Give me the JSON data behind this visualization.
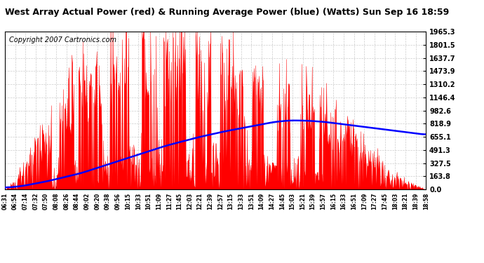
{
  "title": "West Array Actual Power (red) & Running Average Power (blue) (Watts) Sun Sep 16 18:59",
  "copyright": "Copyright 2007 Cartronics.com",
  "ymax": 1965.3,
  "yticks": [
    0.0,
    163.8,
    327.5,
    491.3,
    655.1,
    818.9,
    982.6,
    1146.4,
    1310.2,
    1473.9,
    1637.7,
    1801.5,
    1965.3
  ],
  "ytick_labels": [
    "0.0",
    "163.8",
    "327.5",
    "491.3",
    "655.1",
    "818.9",
    "982.6",
    "1146.4",
    "1310.2",
    "1473.9",
    "1637.7",
    "1801.5",
    "1965.3"
  ],
  "background_color": "#ffffff",
  "plot_bg_color": "#ffffff",
  "grid_color": "#cccccc",
  "bar_color": "#ff0000",
  "line_color": "#0000ff",
  "title_color": "#000000",
  "title_fontsize": 9,
  "copyright_fontsize": 7,
  "x_labels": [
    "06:31",
    "06:54",
    "07:14",
    "07:32",
    "07:50",
    "08:08",
    "08:26",
    "08:44",
    "09:02",
    "09:20",
    "09:38",
    "09:56",
    "10:15",
    "10:33",
    "10:51",
    "11:09",
    "11:27",
    "11:45",
    "12:03",
    "12:21",
    "12:39",
    "12:57",
    "13:15",
    "13:33",
    "13:51",
    "14:09",
    "14:27",
    "14:45",
    "15:03",
    "15:21",
    "15:39",
    "15:57",
    "16:15",
    "16:33",
    "16:51",
    "17:09",
    "17:27",
    "17:45",
    "18:03",
    "18:21",
    "18:39",
    "18:58"
  ],
  "avg_points_t": [
    0.0,
    0.04,
    0.1,
    0.18,
    0.28,
    0.38,
    0.46,
    0.52,
    0.56,
    0.6,
    0.64,
    0.68,
    0.72,
    0.76,
    0.82,
    0.88,
    0.94,
    1.0
  ],
  "avg_points_v": [
    20,
    40,
    100,
    200,
    370,
    540,
    650,
    720,
    760,
    800,
    840,
    860,
    855,
    840,
    800,
    760,
    720,
    680
  ]
}
